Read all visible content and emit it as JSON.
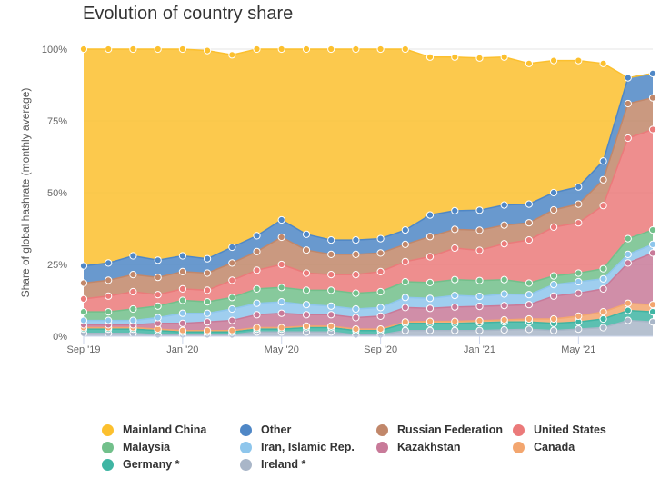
{
  "chart_data": {
    "type": "area",
    "stacked": "percent",
    "title": "Evolution of country share",
    "ylabel": "Share of global hashrate (monthly average)",
    "ylim": [
      0,
      100
    ],
    "y_ticks": [
      "0%",
      "25%",
      "50%",
      "75%",
      "100%"
    ],
    "y_tick_values": [
      0,
      25,
      50,
      75,
      100
    ],
    "x": [
      "2019-09",
      "2019-10",
      "2019-11",
      "2019-12",
      "2020-01",
      "2020-02",
      "2020-03",
      "2020-04",
      "2020-05",
      "2020-06",
      "2020-07",
      "2020-08",
      "2020-09",
      "2020-10",
      "2020-11",
      "2020-12",
      "2021-01",
      "2021-02",
      "2021-03",
      "2021-04",
      "2021-05",
      "2021-06",
      "2021-07",
      "2021-08"
    ],
    "x_tick_labels": [
      {
        "index": 0,
        "label": "Sep '19"
      },
      {
        "index": 4,
        "label": "Jan '20"
      },
      {
        "index": 8,
        "label": "May '20"
      },
      {
        "index": 12,
        "label": "Sep '20"
      },
      {
        "index": 16,
        "label": "Jan '21"
      },
      {
        "index": 20,
        "label": "May '21"
      }
    ],
    "series": [
      {
        "name": "Mainland China",
        "color": "#fcc02e",
        "values": [
          75.5,
          74.5,
          72,
          73.5,
          72.5,
          72.5,
          67,
          65,
          59.5,
          64.5,
          66.5,
          66.5,
          67,
          67,
          55,
          53.5,
          53,
          51.5,
          49,
          46,
          44,
          34,
          0,
          0
        ]
      },
      {
        "name": "Other",
        "color": "#4f87c6",
        "values": [
          6,
          6,
          6.5,
          6,
          5.5,
          5,
          5.5,
          5.5,
          6,
          5.5,
          5,
          5,
          5,
          5,
          7.5,
          6.5,
          7,
          7,
          6.5,
          6,
          6,
          6.5,
          9,
          8.5
        ]
      },
      {
        "name": "Russian Federation",
        "color": "#c1876a",
        "values": [
          5.5,
          5.5,
          6,
          6,
          6,
          6,
          6,
          6.5,
          9.5,
          8,
          7,
          7,
          6.5,
          6,
          7,
          6.5,
          7,
          6.5,
          6,
          6,
          6.5,
          9,
          12,
          11
        ]
      },
      {
        "name": "United States",
        "color": "#eb7a7a",
        "values": [
          4.5,
          5.5,
          6,
          4,
          4,
          4,
          6,
          6.5,
          8,
          6,
          5.5,
          6.5,
          7,
          7,
          9,
          11,
          10.5,
          12.5,
          15,
          17,
          17.5,
          22,
          35,
          35
        ]
      },
      {
        "name": "Malaysia",
        "color": "#72c08b",
        "values": [
          3,
          3,
          4,
          4,
          4.5,
          4,
          4,
          5,
          5,
          5,
          5.5,
          5.5,
          5.5,
          5.5,
          5.5,
          5.5,
          5.5,
          5,
          4,
          3,
          3,
          3.5,
          5.5,
          5
        ]
      },
      {
        "name": "Iran, Islamic Rep.",
        "color": "#8ec6ec",
        "values": [
          1.5,
          1.5,
          1.5,
          2,
          3.5,
          3,
          4,
          4,
          4,
          3.5,
          3,
          3,
          3,
          3.5,
          3.5,
          4,
          3.5,
          4,
          3.5,
          4,
          4,
          3.5,
          3,
          3
        ]
      },
      {
        "name": "Kazakhstan",
        "color": "#c87a99",
        "values": [
          1,
          1,
          1,
          2,
          2.5,
          3,
          3.5,
          4.5,
          5,
          4,
          4,
          4,
          4.5,
          5,
          4.5,
          5,
          5,
          5,
          5,
          8,
          8,
          8,
          14,
          18
        ]
      },
      {
        "name": "Canada",
        "color": "#f3a66f",
        "values": [
          0.5,
          0.5,
          0.5,
          0.5,
          0.5,
          0.5,
          0.5,
          0.5,
          0.5,
          0.5,
          0.5,
          0.5,
          0.5,
          0.5,
          0.7,
          0.7,
          0.7,
          0.7,
          1,
          1.5,
          2,
          2.5,
          2.5,
          2.5
        ]
      },
      {
        "name": "Germany *",
        "color": "#3fb5a3",
        "values": [
          1.5,
          1.5,
          1.5,
          1.5,
          1,
          1,
          1,
          1,
          1,
          1.5,
          1.5,
          1.5,
          1.5,
          2.5,
          2.5,
          2.5,
          2.7,
          2.8,
          2.6,
          2.5,
          2.5,
          3,
          3.5,
          3.5
        ]
      },
      {
        "name": "Ireland *",
        "color": "#a9b6c8",
        "values": [
          1,
          1,
          1,
          0.5,
          0.5,
          0.5,
          0.5,
          1.5,
          1.5,
          1.5,
          1.5,
          0.5,
          0.5,
          2,
          2,
          2,
          2,
          2.2,
          2.4,
          2,
          2.5,
          3,
          5.5,
          5
        ]
      }
    ]
  },
  "legend": {
    "items": [
      {
        "label": "Mainland China",
        "color": "#fcc02e"
      },
      {
        "label": "Other",
        "color": "#4f87c6"
      },
      {
        "label": "Russian Federation",
        "color": "#c1876a"
      },
      {
        "label": "United States",
        "color": "#eb7a7a"
      },
      {
        "label": "Malaysia",
        "color": "#72c08b"
      },
      {
        "label": "Iran, Islamic Rep.",
        "color": "#8ec6ec"
      },
      {
        "label": "Kazakhstan",
        "color": "#c87a99"
      },
      {
        "label": "Canada",
        "color": "#f3a66f"
      },
      {
        "label": "Germany *",
        "color": "#3fb5a3"
      },
      {
        "label": "Ireland *",
        "color": "#a9b6c8"
      }
    ]
  }
}
